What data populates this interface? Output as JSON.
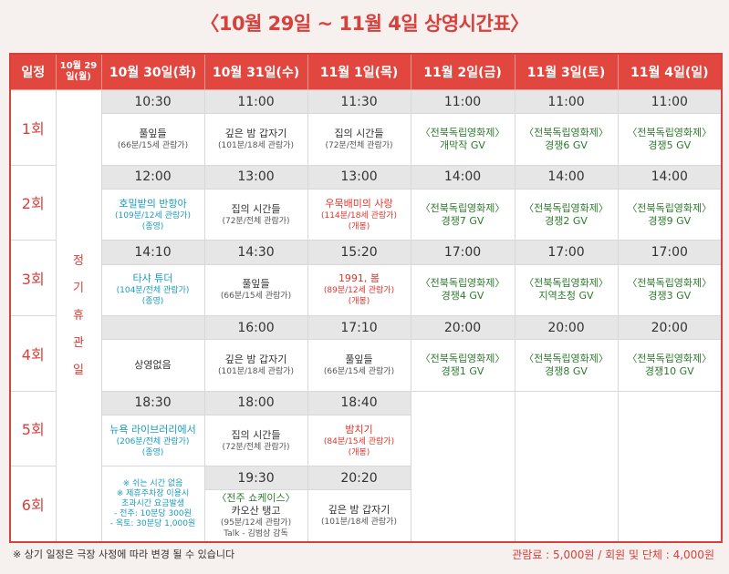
{
  "title": "〈10월 29일 ~ 11월 4일 상영시간표〉",
  "header": {
    "schedule_label": "일정",
    "day0": "10월 29일(월)",
    "days": [
      "10월 30일(화)",
      "10월 31일(수)",
      "11월 1일(목)",
      "11월 2일(금)",
      "11월 3일(토)",
      "11월 4일(일)"
    ]
  },
  "closed_text": [
    "정",
    "기",
    "휴",
    "관",
    "일"
  ],
  "rounds": [
    "1회",
    "2회",
    "3회",
    "4회",
    "5회",
    "6회"
  ],
  "r1": {
    "times": [
      "10:30",
      "11:00",
      "11:30",
      "11:00",
      "11:00",
      "11:00"
    ],
    "c0": {
      "title": "풀잎들",
      "sub": "(66분/15세 관람가)"
    },
    "c1": {
      "title": "깊은 밤 갑자기",
      "sub": "(101분/18세 관람가)"
    },
    "c2": {
      "title": "집의 시간들",
      "sub": "(72분/전체 관람가)"
    },
    "c3": {
      "title": "〈전북독립영화제〉",
      "sub": "개막작 GV"
    },
    "c4": {
      "title": "〈전북독립영화제〉",
      "sub": "경쟁6 GV"
    },
    "c5": {
      "title": "〈전북독립영화제〉",
      "sub": "경쟁5 GV"
    }
  },
  "r2": {
    "times": [
      "12:00",
      "13:00",
      "13:00",
      "14:00",
      "14:00",
      "14:00"
    ],
    "c0": {
      "title": "호밀밭의 반항아",
      "sub": "(109분/12세 관람가)",
      "sub2": "(종영)"
    },
    "c1": {
      "title": "집의 시간들",
      "sub": "(72분/전체 관람가)"
    },
    "c2": {
      "title": "우묵배미의 사랑",
      "sub": "(114분/18세 관람가)",
      "sub2": "(개봉)"
    },
    "c3": {
      "title": "〈전북독립영화제〉",
      "sub": "경쟁7 GV"
    },
    "c4": {
      "title": "〈전북독립영화제〉",
      "sub": "경쟁2 GV"
    },
    "c5": {
      "title": "〈전북독립영화제〉",
      "sub": "경쟁9 GV"
    }
  },
  "r3": {
    "times": [
      "14:10",
      "14:30",
      "15:20",
      "17:00",
      "17:00",
      "17:00"
    ],
    "c0": {
      "title": "타샤 튜더",
      "sub": "(104분/전체 관람가)",
      "sub2": "(종영)"
    },
    "c1": {
      "title": "풀잎들",
      "sub": "(66분/15세 관람가)"
    },
    "c2": {
      "title": "1991, 봄",
      "sub": "(89분/12세 관람가)",
      "sub2": "(개봉)"
    },
    "c3": {
      "title": "〈전북독립영화제〉",
      "sub": "경쟁4 GV"
    },
    "c4": {
      "title": "〈전북독립영화제〉",
      "sub": "지역초청 GV"
    },
    "c5": {
      "title": "〈전북독립영화제〉",
      "sub": "경쟁3 GV"
    }
  },
  "r4": {
    "times": [
      "",
      "16:00",
      "17:10",
      "20:00",
      "20:00",
      "20:00"
    ],
    "c0": {
      "title": "상영없음"
    },
    "c1": {
      "title": "깊은 밤 갑자기",
      "sub": "(101분/18세 관람가)"
    },
    "c2": {
      "title": "풀잎들",
      "sub": "(66분/15세 관람가)"
    },
    "c3": {
      "title": "〈전북독립영화제〉",
      "sub": "경쟁1 GV"
    },
    "c4": {
      "title": "〈전북독립영화제〉",
      "sub": "경쟁8 GV"
    },
    "c5": {
      "title": "〈전북독립영화제〉",
      "sub": "경쟁10 GV"
    }
  },
  "r5": {
    "times": [
      "18:30",
      "18:00",
      "18:40"
    ],
    "c0": {
      "title": "뉴욕 라이브러리에서",
      "sub": "(206분/전체 관람가)",
      "sub2": "(종영)"
    },
    "c1": {
      "title": "집의 시간들",
      "sub": "(72분/전체 관람가)"
    },
    "c2": {
      "title": "밤치기",
      "sub": "(84분/15세 관람가)",
      "sub2": "(개봉)"
    }
  },
  "r6": {
    "times": [
      "19:30",
      "20:20"
    ],
    "notes": [
      "※ 쉬는 시간 없음",
      "※ 제휴주차장 이용시",
      "초과시간 요금발생",
      "- 전주: 10분당 300원",
      "- 옥토: 30분당 1,000원"
    ],
    "c1": {
      "title": "〈전주 쇼케이스〉",
      "title2": "카오산 탱고",
      "sub": "(95분/12세 관람가)",
      "sub2": "Talk - 김범삼 감독"
    },
    "c2": {
      "title": "깊은 밤 갑자기",
      "sub": "(101분/18세 관람가)"
    }
  },
  "footer": {
    "notice": "※ 상기 일정은 극장 사정에 따라 변경 될 수 있습니다",
    "fee": "관람료 :  5,000원 / 회원 및 단체 : 4,000원"
  }
}
